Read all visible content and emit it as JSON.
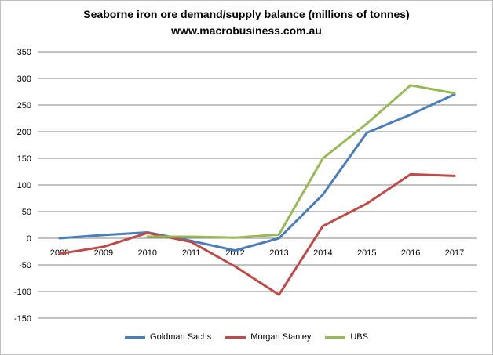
{
  "chart_data": {
    "type": "line",
    "title": "Seaborne iron ore demand/supply balance (millions of tonnes)",
    "subtitle": "www.macrobusiness.com.au",
    "categories": [
      "2008",
      "2009",
      "2010",
      "2011",
      "2012",
      "2013",
      "2014",
      "2015",
      "2016",
      "2017"
    ],
    "ylim": [
      -150,
      350
    ],
    "yticks": [
      -150,
      -100,
      -50,
      0,
      50,
      100,
      150,
      200,
      250,
      300,
      350
    ],
    "grid": true,
    "legend": "bottom",
    "series": [
      {
        "name": "Goldman Sachs",
        "color": "#4a7ebb",
        "values": [
          0,
          6,
          11,
          -5,
          -23,
          0,
          82,
          198,
          232,
          270
        ]
      },
      {
        "name": "Morgan Stanley",
        "color": "#be4b48",
        "values": [
          -29,
          -16,
          10,
          -7,
          -53,
          -106,
          23,
          65,
          120,
          117
        ]
      },
      {
        "name": "UBS",
        "color": "#98b954",
        "values": [
          null,
          null,
          3,
          3,
          1,
          7,
          150,
          215,
          287,
          272
        ]
      }
    ]
  }
}
